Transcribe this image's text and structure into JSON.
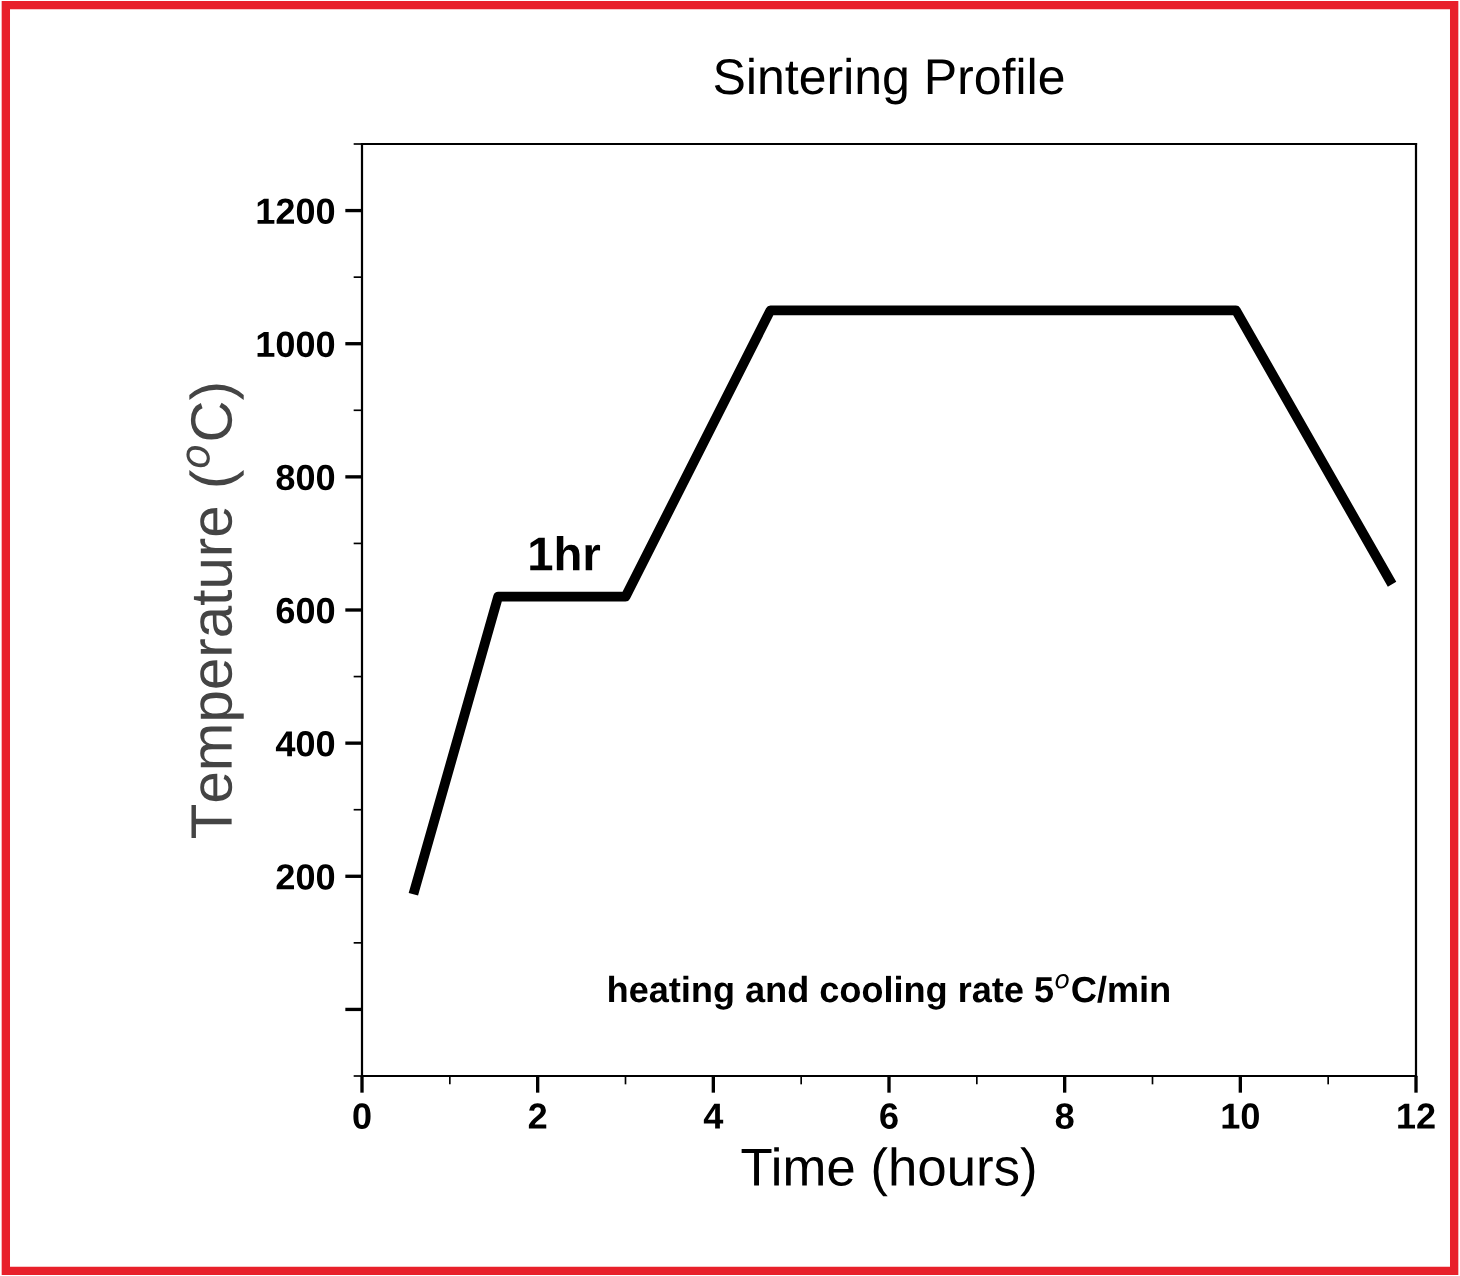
{
  "chart_data": {
    "type": "line",
    "title": "Sintering Profile",
    "xlabel": "Time (hours)",
    "ylabel": "Temperature ($^{o}$C)",
    "x": [
      0.6,
      1.55,
      3,
      4.65,
      9.95,
      11.7
    ],
    "series": [
      {
        "color": "#000000",
        "values": [
          180,
          620,
          620,
          1050,
          1050,
          645
        ]
      }
    ],
    "xlim": [
      0,
      12
    ],
    "xticks": [
      0,
      2,
      4,
      6,
      8,
      10,
      12
    ],
    "ylim": [
      -100,
      1300
    ],
    "yticks": [
      {
        "value": 0,
        "label": null
      },
      200,
      400,
      600,
      800,
      1000,
      1200
    ],
    "annotations": [
      {
        "text": "1hr",
        "x": 2.3,
        "y": 620
      },
      "heating and cooling rate 5$^{o}$C/min"
    ],
    "grid": false,
    "legend": false,
    "marker": "none",
    "line_style": "solid"
  }
}
